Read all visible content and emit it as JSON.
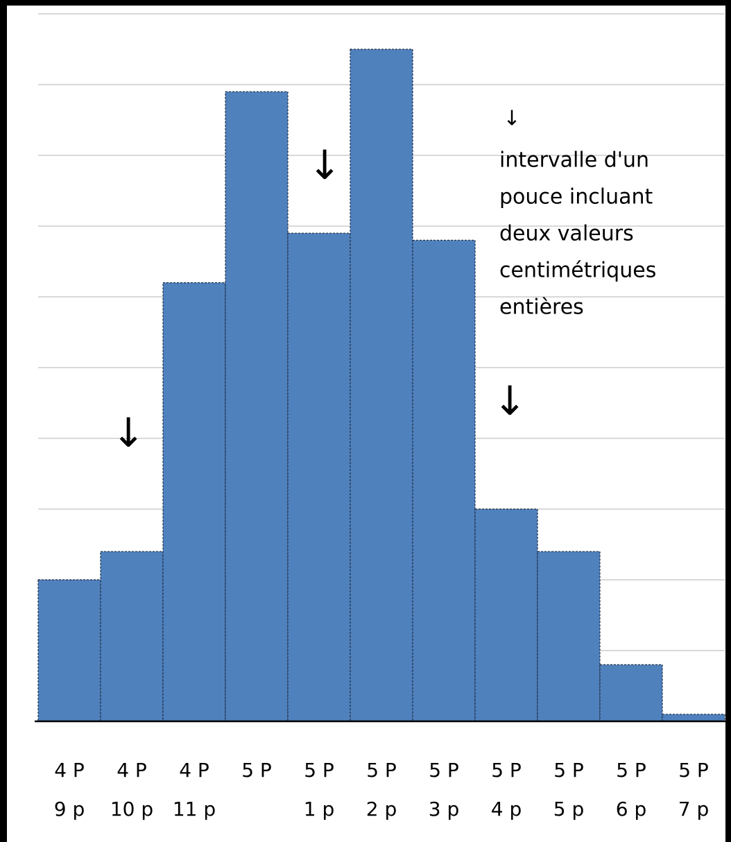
{
  "chart_data": {
    "type": "bar",
    "categories": [
      [
        "4 P",
        "9 p"
      ],
      [
        "4 P",
        "10 p"
      ],
      [
        "4 P",
        "11 p"
      ],
      [
        "5 P"
      ],
      [
        "5 P",
        "1 p"
      ],
      [
        "5 P",
        "2 p"
      ],
      [
        "5 P",
        "3 p"
      ],
      [
        "5 P",
        "4 p"
      ],
      [
        "5 P",
        "5 p"
      ],
      [
        "5 P",
        "6 p"
      ],
      [
        "5 P",
        "7 p"
      ]
    ],
    "values": [
      2.0,
      2.4,
      6.2,
      8.9,
      6.9,
      9.5,
      6.8,
      3.0,
      2.4,
      0.8,
      0.1
    ],
    "color": "#4f81bd",
    "ylim": [
      0,
      10
    ],
    "yticks": [
      0,
      1,
      2,
      3,
      4,
      5,
      6,
      7,
      8,
      9,
      10
    ],
    "grid": true,
    "annotations": [
      "↓",
      "↓",
      "↓",
      "↓",
      [
        "intervalle d'un",
        "pouce incluant",
        "deux valeurs",
        "centimétriques",
        "entières"
      ]
    ]
  }
}
